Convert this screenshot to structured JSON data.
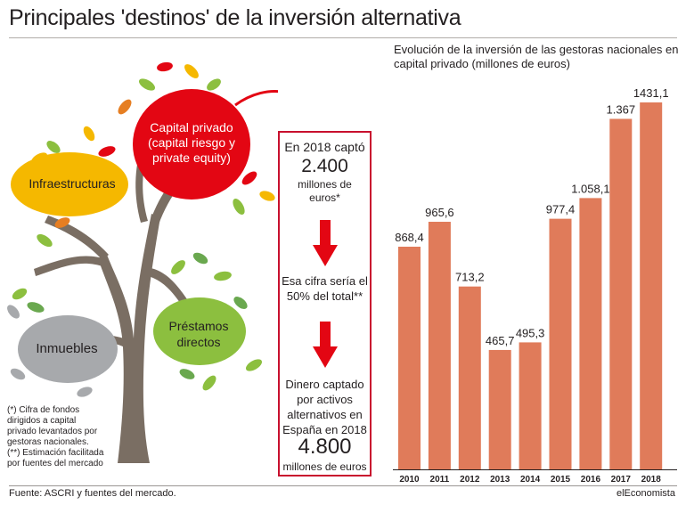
{
  "title": "Principales 'destinos' de la inversión alternativa",
  "illustration": {
    "capital_privado": "Capital privado\n(capital riesgo y\nprivate equity)",
    "infraestructuras": "Infraestructuras",
    "inmuebles": "Inmuebles",
    "prestamos": "Préstamos\ndirectos"
  },
  "info_box": {
    "line1": "En 2018 captó",
    "value1": "2.400",
    "line2": "millones de\neuros*",
    "line3": "Esa cifra sería el\n50% del total**",
    "line4": "Dinero captado\npor activos\nalternativos en\nEspaña en 2018",
    "value2": "4.800",
    "line5": "millones de euros"
  },
  "notes": "(*) Cifra de fondos dirigidos a capital privado levantados por gestoras nacionales.\n(**) Estimación facilitada por fuentes del mercado",
  "source": "Fuente: ASCRI y fuentes del mercado.",
  "brand": "elEconomista",
  "colors": {
    "bar": "#e07b5a",
    "box_border": "#c8102e",
    "red_bubble": "#e30613",
    "infra_bubble": "#f5b800",
    "prestamos_bubble": "#8cbf3f",
    "inmuebles_bubble": "#a7a9ac"
  },
  "chart_data": {
    "type": "bar",
    "subtitle": "Evolución de la inversión de las gestoras nacionales en capital privado (millones de euros)",
    "categories": [
      "2010",
      "2011",
      "2012",
      "2013",
      "2014",
      "2015",
      "2016",
      "2017",
      "2018"
    ],
    "values": [
      868.4,
      965.6,
      713.2,
      465.7,
      495.3,
      977.4,
      1058.1,
      1367,
      1431.1
    ],
    "value_labels": [
      "868,4",
      "965,6",
      "713,2",
      "465,7",
      "495,3",
      "977,4",
      "1.058,1",
      "1.367",
      "1431,1"
    ],
    "grid": false,
    "legend": "none"
  }
}
